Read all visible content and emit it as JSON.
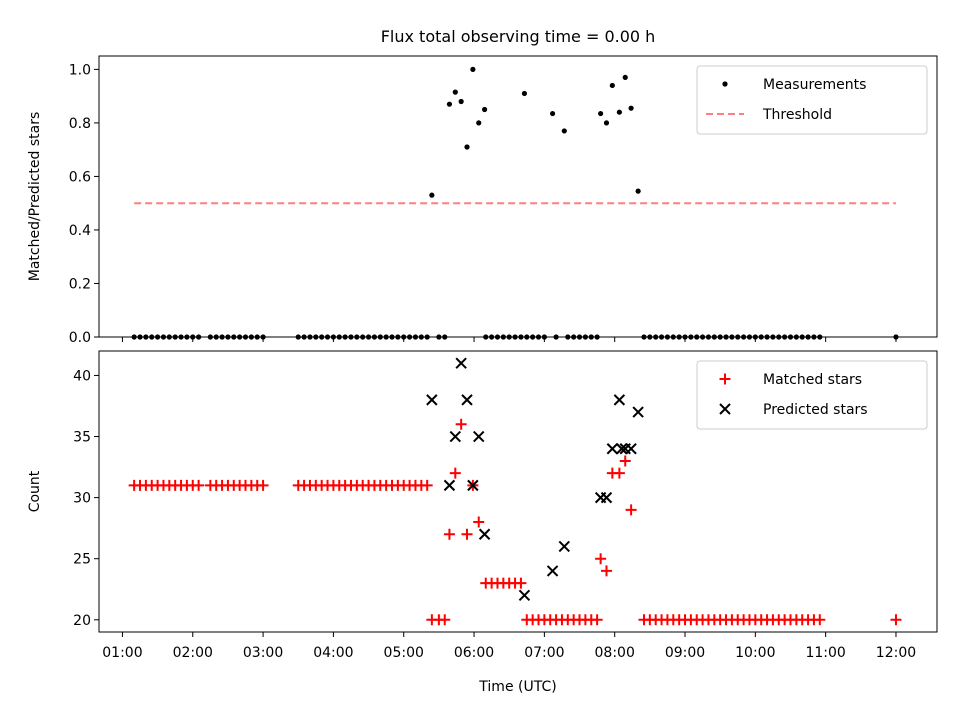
{
  "figure": {
    "title": "Flux total observing time = 0.00 h",
    "xlabel": "Time (UTC)"
  },
  "chart_data": [
    {
      "type": "scatter",
      "ylabel": "Matched/Predicted stars",
      "ylim": [
        0,
        1.05
      ],
      "yticks": [
        "0.0",
        "0.2",
        "0.4",
        "0.6",
        "0.8",
        "1.0"
      ],
      "xlim": [
        "00:40",
        "12:35"
      ],
      "xticks": [
        "01:00",
        "02:00",
        "03:00",
        "04:00",
        "05:00",
        "06:00",
        "07:00",
        "08:00",
        "09:00",
        "10:00",
        "11:00",
        "12:00"
      ],
      "grid": false,
      "legend_position": "upper right",
      "series": [
        {
          "name": "Measurements",
          "marker": "dot",
          "color": "#000000",
          "points": [
            [
              "01:10",
              0
            ],
            [
              "01:15",
              0
            ],
            [
              "01:20",
              0
            ],
            [
              "01:25",
              0
            ],
            [
              "01:30",
              0
            ],
            [
              "01:35",
              0
            ],
            [
              "01:40",
              0
            ],
            [
              "01:45",
              0
            ],
            [
              "01:50",
              0
            ],
            [
              "01:55",
              0
            ],
            [
              "02:00",
              0
            ],
            [
              "02:05",
              0
            ],
            [
              "02:15",
              0
            ],
            [
              "02:20",
              0
            ],
            [
              "02:25",
              0
            ],
            [
              "02:30",
              0
            ],
            [
              "02:35",
              0
            ],
            [
              "02:40",
              0
            ],
            [
              "02:45",
              0
            ],
            [
              "02:50",
              0
            ],
            [
              "02:55",
              0
            ],
            [
              "03:00",
              0
            ],
            [
              "03:30",
              0
            ],
            [
              "03:35",
              0
            ],
            [
              "03:40",
              0
            ],
            [
              "03:45",
              0
            ],
            [
              "03:50",
              0
            ],
            [
              "03:55",
              0
            ],
            [
              "04:00",
              0
            ],
            [
              "04:05",
              0
            ],
            [
              "04:10",
              0
            ],
            [
              "04:15",
              0
            ],
            [
              "04:20",
              0
            ],
            [
              "04:25",
              0
            ],
            [
              "04:30",
              0
            ],
            [
              "04:35",
              0
            ],
            [
              "04:40",
              0
            ],
            [
              "04:45",
              0
            ],
            [
              "04:50",
              0
            ],
            [
              "04:55",
              0
            ],
            [
              "05:00",
              0
            ],
            [
              "05:05",
              0
            ],
            [
              "05:10",
              0
            ],
            [
              "05:15",
              0
            ],
            [
              "05:20",
              0
            ],
            [
              "05:24",
              0.53
            ],
            [
              "05:30",
              0
            ],
            [
              "05:35",
              0
            ],
            [
              "05:39",
              0.87
            ],
            [
              "05:44",
              0.915
            ],
            [
              "05:49",
              0.88
            ],
            [
              "05:54",
              0.71
            ],
            [
              "05:59",
              1.0
            ],
            [
              "06:04",
              0.8
            ],
            [
              "06:09",
              0.85
            ],
            [
              "06:10",
              0
            ],
            [
              "06:15",
              0
            ],
            [
              "06:20",
              0
            ],
            [
              "06:25",
              0
            ],
            [
              "06:30",
              0
            ],
            [
              "06:35",
              0
            ],
            [
              "06:40",
              0
            ],
            [
              "06:43",
              0.91
            ],
            [
              "06:45",
              0
            ],
            [
              "06:50",
              0
            ],
            [
              "06:55",
              0
            ],
            [
              "07:00",
              0
            ],
            [
              "07:07",
              0.835
            ],
            [
              "07:10",
              0
            ],
            [
              "07:17",
              0.77
            ],
            [
              "07:20",
              0
            ],
            [
              "07:25",
              0
            ],
            [
              "07:30",
              0
            ],
            [
              "07:35",
              0
            ],
            [
              "07:40",
              0
            ],
            [
              "07:45",
              0
            ],
            [
              "07:48",
              0.835
            ],
            [
              "07:53",
              0.8
            ],
            [
              "07:58",
              0.94
            ],
            [
              "08:04",
              0.84
            ],
            [
              "08:09",
              0.97
            ],
            [
              "08:14",
              0.855
            ],
            [
              "08:20",
              0.545
            ],
            [
              "08:25",
              0
            ],
            [
              "08:30",
              0
            ],
            [
              "08:35",
              0
            ],
            [
              "08:40",
              0
            ],
            [
              "08:45",
              0
            ],
            [
              "08:50",
              0
            ],
            [
              "08:55",
              0
            ],
            [
              "09:00",
              0
            ],
            [
              "09:05",
              0
            ],
            [
              "09:10",
              0
            ],
            [
              "09:15",
              0
            ],
            [
              "09:20",
              0
            ],
            [
              "09:25",
              0
            ],
            [
              "09:30",
              0
            ],
            [
              "09:35",
              0
            ],
            [
              "09:40",
              0
            ],
            [
              "09:45",
              0
            ],
            [
              "09:50",
              0
            ],
            [
              "09:55",
              0
            ],
            [
              "10:00",
              0
            ],
            [
              "10:05",
              0
            ],
            [
              "10:10",
              0
            ],
            [
              "10:15",
              0
            ],
            [
              "10:20",
              0
            ],
            [
              "10:25",
              0
            ],
            [
              "10:30",
              0
            ],
            [
              "10:35",
              0
            ],
            [
              "10:40",
              0
            ],
            [
              "10:45",
              0
            ],
            [
              "10:50",
              0
            ],
            [
              "10:55",
              0
            ],
            [
              "12:00",
              0
            ]
          ]
        },
        {
          "name": "Threshold",
          "marker": "dashed-line",
          "color": "#ff7f7f",
          "points": [
            [
              "01:10",
              0.5
            ],
            [
              "12:00",
              0.5
            ]
          ]
        }
      ]
    },
    {
      "type": "scatter",
      "ylabel": "Count",
      "ylim": [
        19,
        42
      ],
      "yticks": [
        "20",
        "25",
        "30",
        "35",
        "40"
      ],
      "xlim": [
        "00:40",
        "12:35"
      ],
      "xticks": [
        "01:00",
        "02:00",
        "03:00",
        "04:00",
        "05:00",
        "06:00",
        "07:00",
        "08:00",
        "09:00",
        "10:00",
        "11:00",
        "12:00"
      ],
      "grid": false,
      "legend_position": "upper right",
      "series": [
        {
          "name": "Matched stars",
          "marker": "plus",
          "color": "#ff0000",
          "points": [
            [
              "01:10",
              31
            ],
            [
              "01:15",
              31
            ],
            [
              "01:20",
              31
            ],
            [
              "01:25",
              31
            ],
            [
              "01:30",
              31
            ],
            [
              "01:35",
              31
            ],
            [
              "01:40",
              31
            ],
            [
              "01:45",
              31
            ],
            [
              "01:50",
              31
            ],
            [
              "01:55",
              31
            ],
            [
              "02:00",
              31
            ],
            [
              "02:05",
              31
            ],
            [
              "02:15",
              31
            ],
            [
              "02:20",
              31
            ],
            [
              "02:25",
              31
            ],
            [
              "02:30",
              31
            ],
            [
              "02:35",
              31
            ],
            [
              "02:40",
              31
            ],
            [
              "02:45",
              31
            ],
            [
              "02:50",
              31
            ],
            [
              "02:55",
              31
            ],
            [
              "03:00",
              31
            ],
            [
              "03:30",
              31
            ],
            [
              "03:35",
              31
            ],
            [
              "03:40",
              31
            ],
            [
              "03:45",
              31
            ],
            [
              "03:50",
              31
            ],
            [
              "03:55",
              31
            ],
            [
              "04:00",
              31
            ],
            [
              "04:05",
              31
            ],
            [
              "04:10",
              31
            ],
            [
              "04:15",
              31
            ],
            [
              "04:20",
              31
            ],
            [
              "04:25",
              31
            ],
            [
              "04:30",
              31
            ],
            [
              "04:35",
              31
            ],
            [
              "04:40",
              31
            ],
            [
              "04:45",
              31
            ],
            [
              "04:50",
              31
            ],
            [
              "04:55",
              31
            ],
            [
              "05:00",
              31
            ],
            [
              "05:05",
              31
            ],
            [
              "05:10",
              31
            ],
            [
              "05:15",
              31
            ],
            [
              "05:20",
              31
            ],
            [
              "05:24",
              20
            ],
            [
              "05:30",
              20
            ],
            [
              "05:35",
              20
            ],
            [
              "05:39",
              27
            ],
            [
              "05:44",
              32
            ],
            [
              "05:49",
              36
            ],
            [
              "05:54",
              27
            ],
            [
              "05:59",
              31
            ],
            [
              "06:04",
              28
            ],
            [
              "06:10",
              23
            ],
            [
              "06:15",
              23
            ],
            [
              "06:20",
              23
            ],
            [
              "06:25",
              23
            ],
            [
              "06:30",
              23
            ],
            [
              "06:35",
              23
            ],
            [
              "06:40",
              23
            ],
            [
              "06:45",
              20
            ],
            [
              "06:50",
              20
            ],
            [
              "06:55",
              20
            ],
            [
              "07:00",
              20
            ],
            [
              "07:05",
              20
            ],
            [
              "07:10",
              20
            ],
            [
              "07:15",
              20
            ],
            [
              "07:20",
              20
            ],
            [
              "07:25",
              20
            ],
            [
              "07:30",
              20
            ],
            [
              "07:35",
              20
            ],
            [
              "07:40",
              20
            ],
            [
              "07:45",
              20
            ],
            [
              "07:48",
              25
            ],
            [
              "07:53",
              24
            ],
            [
              "07:58",
              32
            ],
            [
              "08:04",
              32
            ],
            [
              "08:09",
              33
            ],
            [
              "08:14",
              29
            ],
            [
              "08:25",
              20
            ],
            [
              "08:30",
              20
            ],
            [
              "08:35",
              20
            ],
            [
              "08:40",
              20
            ],
            [
              "08:45",
              20
            ],
            [
              "08:50",
              20
            ],
            [
              "08:55",
              20
            ],
            [
              "09:00",
              20
            ],
            [
              "09:05",
              20
            ],
            [
              "09:10",
              20
            ],
            [
              "09:15",
              20
            ],
            [
              "09:20",
              20
            ],
            [
              "09:25",
              20
            ],
            [
              "09:30",
              20
            ],
            [
              "09:35",
              20
            ],
            [
              "09:40",
              20
            ],
            [
              "09:45",
              20
            ],
            [
              "09:50",
              20
            ],
            [
              "09:55",
              20
            ],
            [
              "10:00",
              20
            ],
            [
              "10:05",
              20
            ],
            [
              "10:10",
              20
            ],
            [
              "10:15",
              20
            ],
            [
              "10:20",
              20
            ],
            [
              "10:25",
              20
            ],
            [
              "10:30",
              20
            ],
            [
              "10:35",
              20
            ],
            [
              "10:40",
              20
            ],
            [
              "10:45",
              20
            ],
            [
              "10:50",
              20
            ],
            [
              "10:55",
              20
            ],
            [
              "12:00",
              20
            ]
          ]
        },
        {
          "name": "Predicted stars",
          "marker": "x",
          "color": "#000000",
          "points": [
            [
              "05:24",
              38
            ],
            [
              "05:39",
              31
            ],
            [
              "05:44",
              35
            ],
            [
              "05:49",
              41
            ],
            [
              "05:54",
              38
            ],
            [
              "05:59",
              31
            ],
            [
              "06:04",
              35
            ],
            [
              "06:09",
              27
            ],
            [
              "06:43",
              22
            ],
            [
              "07:07",
              24
            ],
            [
              "07:17",
              26
            ],
            [
              "07:48",
              30
            ],
            [
              "07:53",
              30
            ],
            [
              "07:58",
              34
            ],
            [
              "08:04",
              38
            ],
            [
              "08:06",
              34
            ],
            [
              "08:09",
              34
            ],
            [
              "08:14",
              34
            ],
            [
              "08:20",
              37
            ]
          ]
        }
      ]
    }
  ]
}
